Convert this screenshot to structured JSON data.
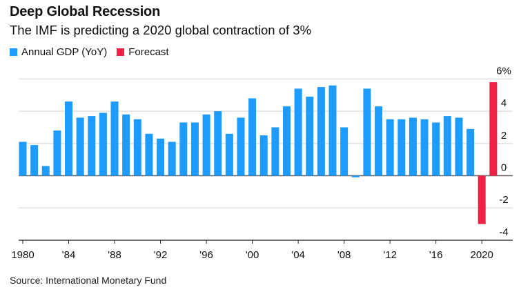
{
  "header": {
    "title": "Deep Global Recession",
    "subtitle": "The IMF is predicting a 2020 global contraction of 3%"
  },
  "legend": [
    {
      "label": "Annual GDP (YoY)",
      "color": "#1e9bff"
    },
    {
      "label": "Forecast",
      "color": "#ee2244"
    }
  ],
  "footer": {
    "source": "Source: International Monetary Fund"
  },
  "chart_data": {
    "type": "bar",
    "title": "Deep Global Recession",
    "subtitle": "The IMF is predicting a 2020 global contraction of 3%",
    "xlabel": "",
    "ylabel": "",
    "ylim": [
      -4,
      6
    ],
    "y_ticks": [
      6,
      4,
      2,
      0,
      -2,
      -4
    ],
    "y_tick_labels": [
      "6%",
      "4",
      "2",
      "0",
      "-2",
      "-4"
    ],
    "y_axis_position": "right",
    "grid": true,
    "legend_position": "top-left",
    "x_tick_years": [
      1980,
      1984,
      1988,
      1992,
      1996,
      2000,
      2004,
      2008,
      2012,
      2016,
      2020
    ],
    "x_tick_labels": [
      "1980",
      "'84",
      "'88",
      "'92",
      "'96",
      "'00",
      "'04",
      "'08",
      "'12",
      "'16",
      "2020"
    ],
    "categories": [
      1980,
      1981,
      1982,
      1983,
      1984,
      1985,
      1986,
      1987,
      1988,
      1989,
      1990,
      1991,
      1992,
      1993,
      1994,
      1995,
      1996,
      1997,
      1998,
      1999,
      2000,
      2001,
      2002,
      2003,
      2004,
      2005,
      2006,
      2007,
      2008,
      2009,
      2010,
      2011,
      2012,
      2013,
      2014,
      2015,
      2016,
      2017,
      2018,
      2019,
      2020,
      2021
    ],
    "series": [
      {
        "name": "Annual GDP (YoY)",
        "color": "#1e9bff",
        "years": [
          1980,
          1981,
          1982,
          1983,
          1984,
          1985,
          1986,
          1987,
          1988,
          1989,
          1990,
          1991,
          1992,
          1993,
          1994,
          1995,
          1996,
          1997,
          1998,
          1999,
          2000,
          2001,
          2002,
          2003,
          2004,
          2005,
          2006,
          2007,
          2008,
          2009,
          2010,
          2011,
          2012,
          2013,
          2014,
          2015,
          2016,
          2017,
          2018,
          2019
        ],
        "values": [
          2.1,
          1.9,
          0.6,
          2.8,
          4.6,
          3.6,
          3.7,
          3.9,
          4.6,
          3.8,
          3.5,
          2.6,
          2.3,
          2.1,
          3.3,
          3.3,
          3.8,
          4.0,
          2.6,
          3.6,
          4.8,
          2.5,
          3.0,
          4.3,
          5.4,
          4.9,
          5.5,
          5.6,
          3.0,
          -0.1,
          5.4,
          4.3,
          3.5,
          3.5,
          3.6,
          3.5,
          3.3,
          3.7,
          3.6,
          2.9
        ]
      },
      {
        "name": "Forecast",
        "color": "#ee2244",
        "years": [
          2020,
          2021
        ],
        "values": [
          -3.0,
          5.8
        ]
      }
    ]
  }
}
